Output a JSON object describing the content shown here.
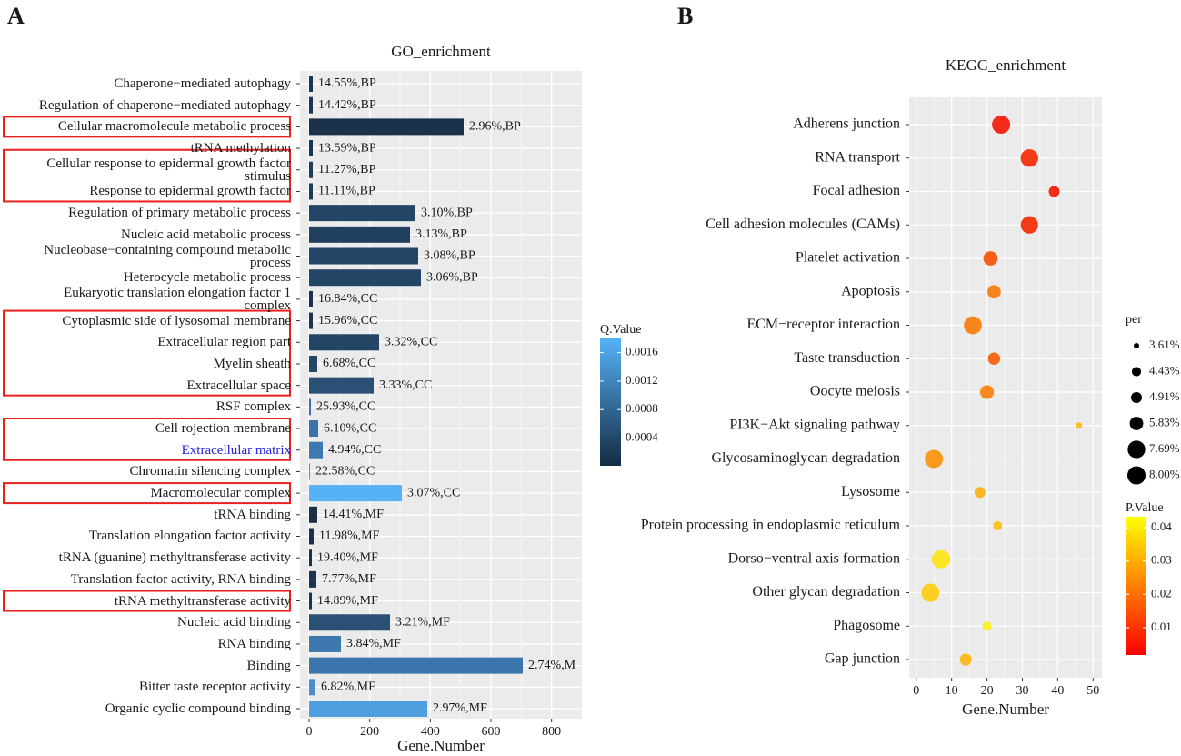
{
  "chart_data": [
    {
      "type": "bar",
      "orientation": "horizontal",
      "panel_label": "A",
      "title": "GO_enrichment",
      "xlabel": "Gene.Number",
      "categories": [
        "Chaperone−mediated autophagy",
        "Regulation of chaperone−mediated autophagy",
        "Cellular macromolecule metabolic process",
        "tRNA methylation",
        "Cellular response to epidermal growth factor\nstimulus",
        "Response to epidermal growth factor",
        "Regulation of primary metabolic process",
        "Nucleic acid metabolic process",
        "Nucleobase−containing compound metabolic\nprocess",
        "Heterocycle metabolic process",
        "Eukaryotic translation elongation factor 1\ncomplex",
        "Cytoplasmic side of lysosomal membrane",
        "Extracellular region part",
        "Myelin sheath",
        "Extracellular space",
        "RSF complex",
        "Cell rojection membrane",
        "Extracellular matrix",
        "Chromatin silencing complex",
        "Macromolecular complex",
        "tRNA binding",
        "Translation elongation factor activity",
        "tRNA (guanine) methyltransferase activity",
        "Translation factor activity, RNA binding",
        "tRNA methyltransferase activity",
        "Nucleic acid binding",
        "RNA binding",
        "Binding",
        "Bitter taste receptor activity",
        "Organic cyclic compound binding"
      ],
      "values": [
        12,
        12,
        510,
        12,
        12,
        12,
        351,
        333,
        360,
        369,
        12,
        12,
        231,
        27,
        213,
        6,
        30,
        45,
        3,
        306,
        27,
        15,
        9,
        24,
        9,
        267,
        105,
        705,
        21,
        390
      ],
      "colors": [
        "#1b3550",
        "#1b3550",
        "#1a3249",
        "#1b3550",
        "#1e3a58",
        "#1e3a58",
        "#234566",
        "#21405f",
        "#234566",
        "#234566",
        "#1a3249",
        "#1b3550",
        "#234566",
        "#234566",
        "#2a5075",
        "#3a6fa2",
        "#3b73a8",
        "#3d78b0",
        "#4b91d0",
        "#56b1f7",
        "#182f47",
        "#1a3249",
        "#1a3249",
        "#1b3550",
        "#1b3550",
        "#2a5075",
        "#3c77ae",
        "#3a75ab",
        "#4a8fcb",
        "#4f9fe0"
      ],
      "annotations": [
        "14.55%,BP",
        "14.42%,BP",
        "2.96%,BP",
        "13.59%,BP",
        "11.27%,BP",
        "11.11%,BP",
        "3.10%,BP",
        "3.13%,BP",
        "3.08%,BP",
        "3.06%,BP",
        "16.84%,CC",
        "15.96%,CC",
        "3.32%,CC",
        "6.68%,CC",
        "3.33%,CC",
        "25.93%,CC",
        "6.10%,CC",
        "4.94%,CC",
        "22.58%,CC",
        "3.07%,CC",
        "14.41%,MF",
        "11.98%,MF",
        "19.40%,MF",
        "7.77%,MF",
        "14.89%,MF",
        "3.21%,MF",
        "3.84%,MF",
        "2.74%,M",
        "6.82%,MF",
        "2.97%,MF"
      ],
      "label_colors": [
        "#1a1a1a",
        "#1a1a1a",
        "#1a1a1a",
        "#1a1a1a",
        "#1a1a1a",
        "#1a1a1a",
        "#1a1a1a",
        "#1a1a1a",
        "#1a1a1a",
        "#1a1a1a",
        "#1a1a1a",
        "#1a1a1a",
        "#1a1a1a",
        "#1a1a1a",
        "#1a1a1a",
        "#1a1a1a",
        "#1a1a1a",
        "#2222dd",
        "#1a1a1a",
        "#1a1a1a",
        "#1a1a1a",
        "#1a1a1a",
        "#1a1a1a",
        "#1a1a1a",
        "#1a1a1a",
        "#1a1a1a",
        "#1a1a1a",
        "#1a1a1a",
        "#1a1a1a",
        "#1a1a1a"
      ],
      "xlim": [
        -30,
        900
      ],
      "xticks": [
        0,
        200,
        400,
        600,
        800
      ],
      "grid": true,
      "legend": {
        "title": "Q.Value",
        "lim": [
          1e-05,
          0.0018
        ],
        "ticks": [
          0.0004,
          0.0008,
          0.0012,
          0.0016
        ],
        "colors": [
          "#132b43",
          "#56b1f7"
        ]
      }
    },
    {
      "type": "scatter",
      "panel_label": "B",
      "title": "KEGG_enrichment",
      "xlabel": "Gene.Number",
      "categories": [
        "Adherens junction",
        "RNA transport",
        "Focal adhesion",
        "Cell adhesion molecules (CAMs)",
        "Platelet activation",
        "Apoptosis",
        "ECM−receptor interaction",
        "Taste transduction",
        "Oocyte meiosis",
        "PI3K−Akt signaling pathway",
        "Glycosaminoglycan degradation",
        "Lysosome",
        "Protein processing in endoplasmic reticulum",
        "Dorso−ventral axis formation",
        "Other glycan degradation",
        "Phagosome",
        "Gap junction"
      ],
      "values": [
        24,
        32,
        39,
        32,
        21,
        22,
        16,
        22,
        20,
        46,
        5,
        18,
        23,
        7,
        4,
        20,
        14
      ],
      "sizes": [
        8.0,
        7.7,
        4.9,
        7.6,
        6.2,
        5.8,
        7.9,
        5.4,
        6.0,
        3.8,
        8.0,
        4.9,
        4.4,
        8.0,
        8.0,
        4.4,
        5.3
      ],
      "colors": [
        "#f52a1a",
        "#f53a18",
        "#f52c1a",
        "#f53a18",
        "#f75e18",
        "#f8821c",
        "#f8861d",
        "#f66b19",
        "#f88a1d",
        "#fbc023",
        "#f99a1f",
        "#fbb425",
        "#fcc325",
        "#fde425",
        "#fcd023",
        "#fef02a",
        "#fbbd23"
      ],
      "label_colors": [
        "#1a1a1a",
        "#e8211f",
        "#1a1a1a",
        "#2222dd",
        "#1a1a1a",
        "#2222dd",
        "#2222dd",
        "#e8211f",
        "#1a1a1a",
        "#1a1a1a",
        "#1a1a1a",
        "#e8211f",
        "#1a1a1a",
        "#1a1a1a",
        "#e8211f",
        "#e8211f",
        "#2222dd"
      ],
      "xlim": [
        -2,
        52.5
      ],
      "xticks": [
        0,
        10,
        20,
        30,
        40,
        50
      ],
      "grid": true,
      "size_legend": {
        "title": "per",
        "lim": [
          3.61,
          8.0
        ],
        "ticks": [
          {
            "value": 3.61,
            "label": "3.61%"
          },
          {
            "value": 4.43,
            "label": "4.43%"
          },
          {
            "value": 4.91,
            "label": "4.91%"
          },
          {
            "value": 5.83,
            "label": "5.83%"
          },
          {
            "value": 7.69,
            "label": "7.69%"
          },
          {
            "value": 8.0,
            "label": "8.00%"
          }
        ]
      },
      "legend": {
        "title": "P.Value",
        "lim": [
          0.0018,
          0.0433
        ],
        "ticks": [
          0.01,
          0.02,
          0.03,
          0.04
        ],
        "colors": [
          "#ff0000",
          "#ffff00"
        ]
      }
    }
  ]
}
